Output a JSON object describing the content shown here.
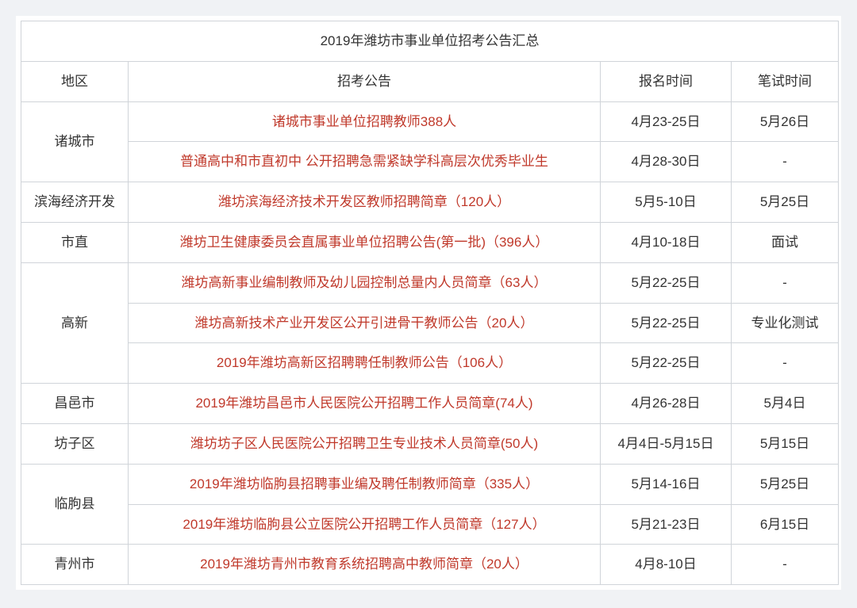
{
  "title": "2019年潍坊市事业单位招考公告汇总",
  "headers": {
    "region": "地区",
    "announcement": "招考公告",
    "registration": "报名时间",
    "exam": "笔试时间"
  },
  "colors": {
    "border": "#d0d4d9",
    "text": "#333333",
    "link": "#c0392b",
    "background_page": "#f0f2f5",
    "background_table": "#ffffff"
  },
  "fontsize": {
    "cell": 17,
    "title": 17
  },
  "col_widths": {
    "region": 135,
    "announce": 595,
    "reg": 165,
    "exam": 135
  },
  "rows": [
    {
      "region": "诸城市",
      "rowspan": 2,
      "announcement": "诸城市事业单位招聘教师388人",
      "registration": "4月23-25日",
      "exam": "5月26日"
    },
    {
      "region": null,
      "announcement": "普通高中和市直初中 公开招聘急需紧缺学科高层次优秀毕业生",
      "registration": "4月28-30日",
      "exam": "-"
    },
    {
      "region": "滨海经济开发",
      "rowspan": 1,
      "announcement": "潍坊滨海经济技术开发区教师招聘简章（120人）",
      "registration": "5月5-10日",
      "exam": "5月25日"
    },
    {
      "region": "市直",
      "rowspan": 1,
      "announcement": "潍坊卫生健康委员会直属事业单位招聘公告(第一批)（396人）",
      "registration": "4月10-18日",
      "exam": "面试"
    },
    {
      "region": "高新",
      "rowspan": 3,
      "announcement": "潍坊高新事业编制教师及幼儿园控制总量内人员简章（63人）",
      "registration": "5月22-25日",
      "exam": "-"
    },
    {
      "region": null,
      "announcement": "潍坊高新技术产业开发区公开引进骨干教师公告（20人）",
      "registration": "5月22-25日",
      "exam": "专业化测试"
    },
    {
      "region": null,
      "announcement": "2019年潍坊高新区招聘聘任制教师公告（106人）",
      "registration": "5月22-25日",
      "exam": "-"
    },
    {
      "region": "昌邑市",
      "rowspan": 1,
      "announcement": "2019年潍坊昌邑市人民医院公开招聘工作人员简章(74人)",
      "registration": "4月26-28日",
      "exam": "5月4日"
    },
    {
      "region": "坊子区",
      "rowspan": 1,
      "announcement": "潍坊坊子区人民医院公开招聘卫生专业技术人员简章(50人)",
      "registration": "4月4日-5月15日",
      "exam": "5月15日"
    },
    {
      "region": "临朐县",
      "rowspan": 2,
      "announcement": "2019年潍坊临朐县招聘事业编及聘任制教师简章（335人）",
      "registration": "5月14-16日",
      "exam": "5月25日"
    },
    {
      "region": null,
      "announcement": "2019年潍坊临朐县公立医院公开招聘工作人员简章（127人）",
      "registration": "5月21-23日",
      "exam": "6月15日"
    },
    {
      "region": "青州市",
      "rowspan": 1,
      "announcement": "2019年潍坊青州市教育系统招聘高中教师简章（20人）",
      "registration": "4月8-10日",
      "exam": "-"
    }
  ]
}
